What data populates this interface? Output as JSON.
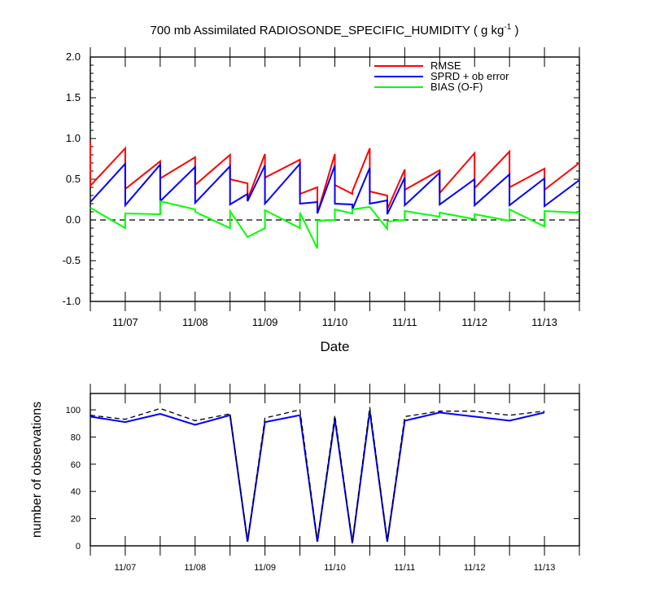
{
  "title_main": "700 mb Assimilated RADIOSONDE_SPECIFIC_HUMIDITY ( g kg",
  "title_sup": "-1",
  "title_end": " )",
  "chart_data": [
    {
      "type": "line",
      "xlabel": "Date",
      "ylabel": "",
      "ylim": [
        -1.0,
        2.0
      ],
      "yticks": [
        "2.0",
        "1.5",
        "1.0",
        "0.5",
        "0.0",
        "-0.5",
        "-1.0"
      ],
      "x_range_days": [
        0,
        7
      ],
      "x_ticks": [
        {
          "label": "11/07",
          "day": 0.5
        },
        {
          "label": "11/08",
          "day": 1.5
        },
        {
          "label": "11/09",
          "day": 2.5
        },
        {
          "label": "11/10",
          "day": 3.5
        },
        {
          "label": "11/11",
          "day": 4.5
        },
        {
          "label": "11/12",
          "day": 5.5
        },
        {
          "label": "11/13",
          "day": 6.5
        }
      ],
      "zero_line": {
        "y": 0.0,
        "style": "dashed"
      },
      "legend_position": "top-right",
      "series": [
        {
          "name": "RMSE",
          "color": "#ff0000",
          "points": [
            [
              0,
              0.97
            ],
            [
              0,
              0.42
            ],
            [
              0.5,
              0.88
            ],
            [
              0.5,
              0.38
            ],
            [
              1,
              0.72
            ],
            [
              1,
              0.51
            ],
            [
              1.5,
              0.77
            ],
            [
              1.5,
              0.43
            ],
            [
              2,
              0.8
            ],
            [
              2,
              0.5
            ],
            [
              2.25,
              0.45
            ],
            [
              2.25,
              0.25
            ],
            [
              2.5,
              0.81
            ],
            [
              2.5,
              0.52
            ],
            [
              3,
              0.74
            ],
            [
              3,
              0.32
            ],
            [
              3.25,
              0.4
            ],
            [
              3.25,
              0.08
            ],
            [
              3.5,
              0.81
            ],
            [
              3.5,
              0.43
            ],
            [
              3.75,
              0.32
            ],
            [
              3.75,
              0.35
            ],
            [
              4,
              0.88
            ],
            [
              4,
              0.35
            ],
            [
              4.25,
              0.3
            ],
            [
              4.25,
              0.13
            ],
            [
              4.5,
              0.62
            ],
            [
              4.5,
              0.37
            ],
            [
              5,
              0.61
            ],
            [
              5,
              0.33
            ],
            [
              5.5,
              0.82
            ],
            [
              5.5,
              0.39
            ],
            [
              6,
              0.84
            ],
            [
              6,
              0.4
            ],
            [
              6.5,
              0.63
            ],
            [
              6.5,
              0.37
            ],
            [
              7,
              0.7
            ]
          ]
        },
        {
          "name": "SPRD + ob error",
          "color": "#0000ff",
          "points": [
            [
              0,
              0.22
            ],
            [
              0.5,
              0.69
            ],
            [
              0.5,
              0.18
            ],
            [
              1,
              0.68
            ],
            [
              1,
              0.23
            ],
            [
              1.5,
              0.65
            ],
            [
              1.5,
              0.21
            ],
            [
              2,
              0.66
            ],
            [
              2,
              0.19
            ],
            [
              2.25,
              0.32
            ],
            [
              2.25,
              0.23
            ],
            [
              2.5,
              0.67
            ],
            [
              2.5,
              0.2
            ],
            [
              3,
              0.69
            ],
            [
              3,
              0.2
            ],
            [
              3.25,
              0.22
            ],
            [
              3.25,
              0.08
            ],
            [
              3.5,
              0.67
            ],
            [
              3.5,
              0.2
            ],
            [
              3.75,
              0.19
            ],
            [
              3.75,
              0.13
            ],
            [
              4,
              0.64
            ],
            [
              4,
              0.2
            ],
            [
              4.25,
              0.24
            ],
            [
              4.25,
              0.07
            ],
            [
              4.5,
              0.52
            ],
            [
              4.5,
              0.18
            ],
            [
              5,
              0.58
            ],
            [
              5,
              0.19
            ],
            [
              5.5,
              0.5
            ],
            [
              5.5,
              0.18
            ],
            [
              6,
              0.56
            ],
            [
              6,
              0.18
            ],
            [
              6.5,
              0.51
            ],
            [
              6.5,
              0.17
            ],
            [
              7,
              0.49
            ]
          ]
        },
        {
          "name": "BIAS (O-F)",
          "color": "#00ff00",
          "points": [
            [
              0,
              0.15
            ],
            [
              0.5,
              -0.1
            ],
            [
              0.5,
              0.08
            ],
            [
              1,
              0.07
            ],
            [
              1,
              0.23
            ],
            [
              1.5,
              0.13
            ],
            [
              1.5,
              0.1
            ],
            [
              2,
              -0.1
            ],
            [
              2,
              0.11
            ],
            [
              2.25,
              -0.21
            ],
            [
              2.5,
              -0.1
            ],
            [
              2.5,
              0.12
            ],
            [
              3,
              -0.1
            ],
            [
              3,
              0.09
            ],
            [
              3.25,
              -0.35
            ],
            [
              3.25,
              -0.01
            ],
            [
              3.5,
              0.0
            ],
            [
              3.5,
              0.13
            ],
            [
              3.75,
              0.08
            ],
            [
              3.75,
              0.13
            ],
            [
              4,
              0.16
            ],
            [
              4,
              0.16
            ],
            [
              4.25,
              -0.11
            ],
            [
              4.25,
              -0.02
            ],
            [
              4.5,
              0.0
            ],
            [
              4.5,
              0.11
            ],
            [
              5,
              0.04
            ],
            [
              5,
              0.09
            ],
            [
              5.5,
              0.01
            ],
            [
              5.5,
              0.07
            ],
            [
              6,
              -0.01
            ],
            [
              6,
              0.13
            ],
            [
              6.5,
              -0.08
            ],
            [
              6.5,
              0.11
            ],
            [
              7,
              0.09
            ]
          ]
        }
      ]
    },
    {
      "type": "line",
      "xlabel": "",
      "ylabel": "number of observations",
      "ylim": [
        0,
        112
      ],
      "yticks": [
        "0",
        "20",
        "40",
        "60",
        "80",
        "100"
      ],
      "x_range_days": [
        0,
        7
      ],
      "x_ticks": [
        {
          "label": "11/07",
          "day": 0.5
        },
        {
          "label": "11/08",
          "day": 1.5
        },
        {
          "label": "11/09",
          "day": 2.5
        },
        {
          "label": "11/10",
          "day": 3.5
        },
        {
          "label": "11/11",
          "day": 4.5
        },
        {
          "label": "11/12",
          "day": 5.5
        },
        {
          "label": "11/13",
          "day": 6.5
        }
      ],
      "series": [
        {
          "color": "#0000ff",
          "style": "solid",
          "points": [
            [
              0,
              95
            ],
            [
              0.5,
              91
            ],
            [
              1,
              97
            ],
            [
              1.5,
              89
            ],
            [
              2,
              96
            ],
            [
              2.25,
              3
            ],
            [
              2.5,
              91
            ],
            [
              3,
              96
            ],
            [
              3.25,
              3
            ],
            [
              3.5,
              93
            ],
            [
              3.75,
              2
            ],
            [
              4,
              99
            ],
            [
              4.25,
              3
            ],
            [
              4.5,
              92
            ],
            [
              5,
              98
            ],
            [
              5.5,
              95
            ],
            [
              6,
              92
            ],
            [
              6.5,
              98
            ]
          ]
        },
        {
          "color": "#000000",
          "style": "dashed",
          "points": [
            [
              0,
              96
            ],
            [
              0.5,
              93
            ],
            [
              1,
              101
            ],
            [
              1.5,
              92
            ],
            [
              2,
              97
            ],
            [
              2.25,
              4
            ],
            [
              2.5,
              94
            ],
            [
              3,
              100
            ],
            [
              3.25,
              4
            ],
            [
              3.5,
              96
            ],
            [
              3.75,
              3
            ],
            [
              4,
              102
            ],
            [
              4.25,
              4
            ],
            [
              4.5,
              95
            ],
            [
              5,
              99
            ],
            [
              5.5,
              99
            ],
            [
              6,
              96
            ],
            [
              6.5,
              99
            ]
          ]
        }
      ]
    }
  ]
}
